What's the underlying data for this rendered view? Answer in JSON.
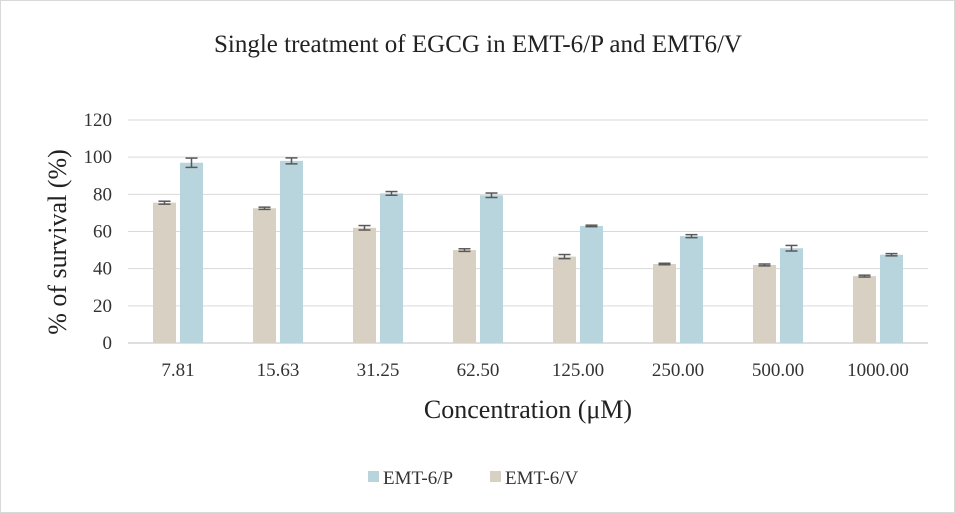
{
  "chart_data": {
    "type": "bar",
    "title": "Single treatment of EGCG in EMT-6/P and EMT6/V",
    "xlabel": "Concentration (μM)",
    "ylabel": "% of survival (%)",
    "ylim": [
      0,
      120
    ],
    "yticks": [
      "0",
      "20",
      "40",
      "60",
      "80",
      "100",
      "120"
    ],
    "categories": [
      "7.81",
      "15.63",
      "31.25",
      "62.50",
      "125.00",
      "250.00",
      "500.00",
      "1000.00"
    ],
    "grid": true,
    "legend_position": "bottom",
    "series": [
      {
        "name": "EMT-6/V",
        "color": "#d7d0c3",
        "values": [
          75.5,
          72.5,
          62,
          50,
          46.5,
          42.5,
          42,
          36
        ],
        "errors": [
          0.8,
          0.6,
          1.2,
          0.7,
          1.1,
          0.4,
          0.5,
          0.5
        ]
      },
      {
        "name": "EMT-6/P",
        "color": "#b8d4dc",
        "values": [
          97,
          98,
          80.5,
          79.5,
          63,
          57.5,
          51,
          47.5
        ],
        "errors": [
          2.5,
          1.6,
          1.0,
          1.2,
          0.4,
          0.8,
          1.5,
          0.6
        ]
      }
    ],
    "legend_order": [
      "EMT-6/P",
      "EMT-6/V"
    ]
  }
}
